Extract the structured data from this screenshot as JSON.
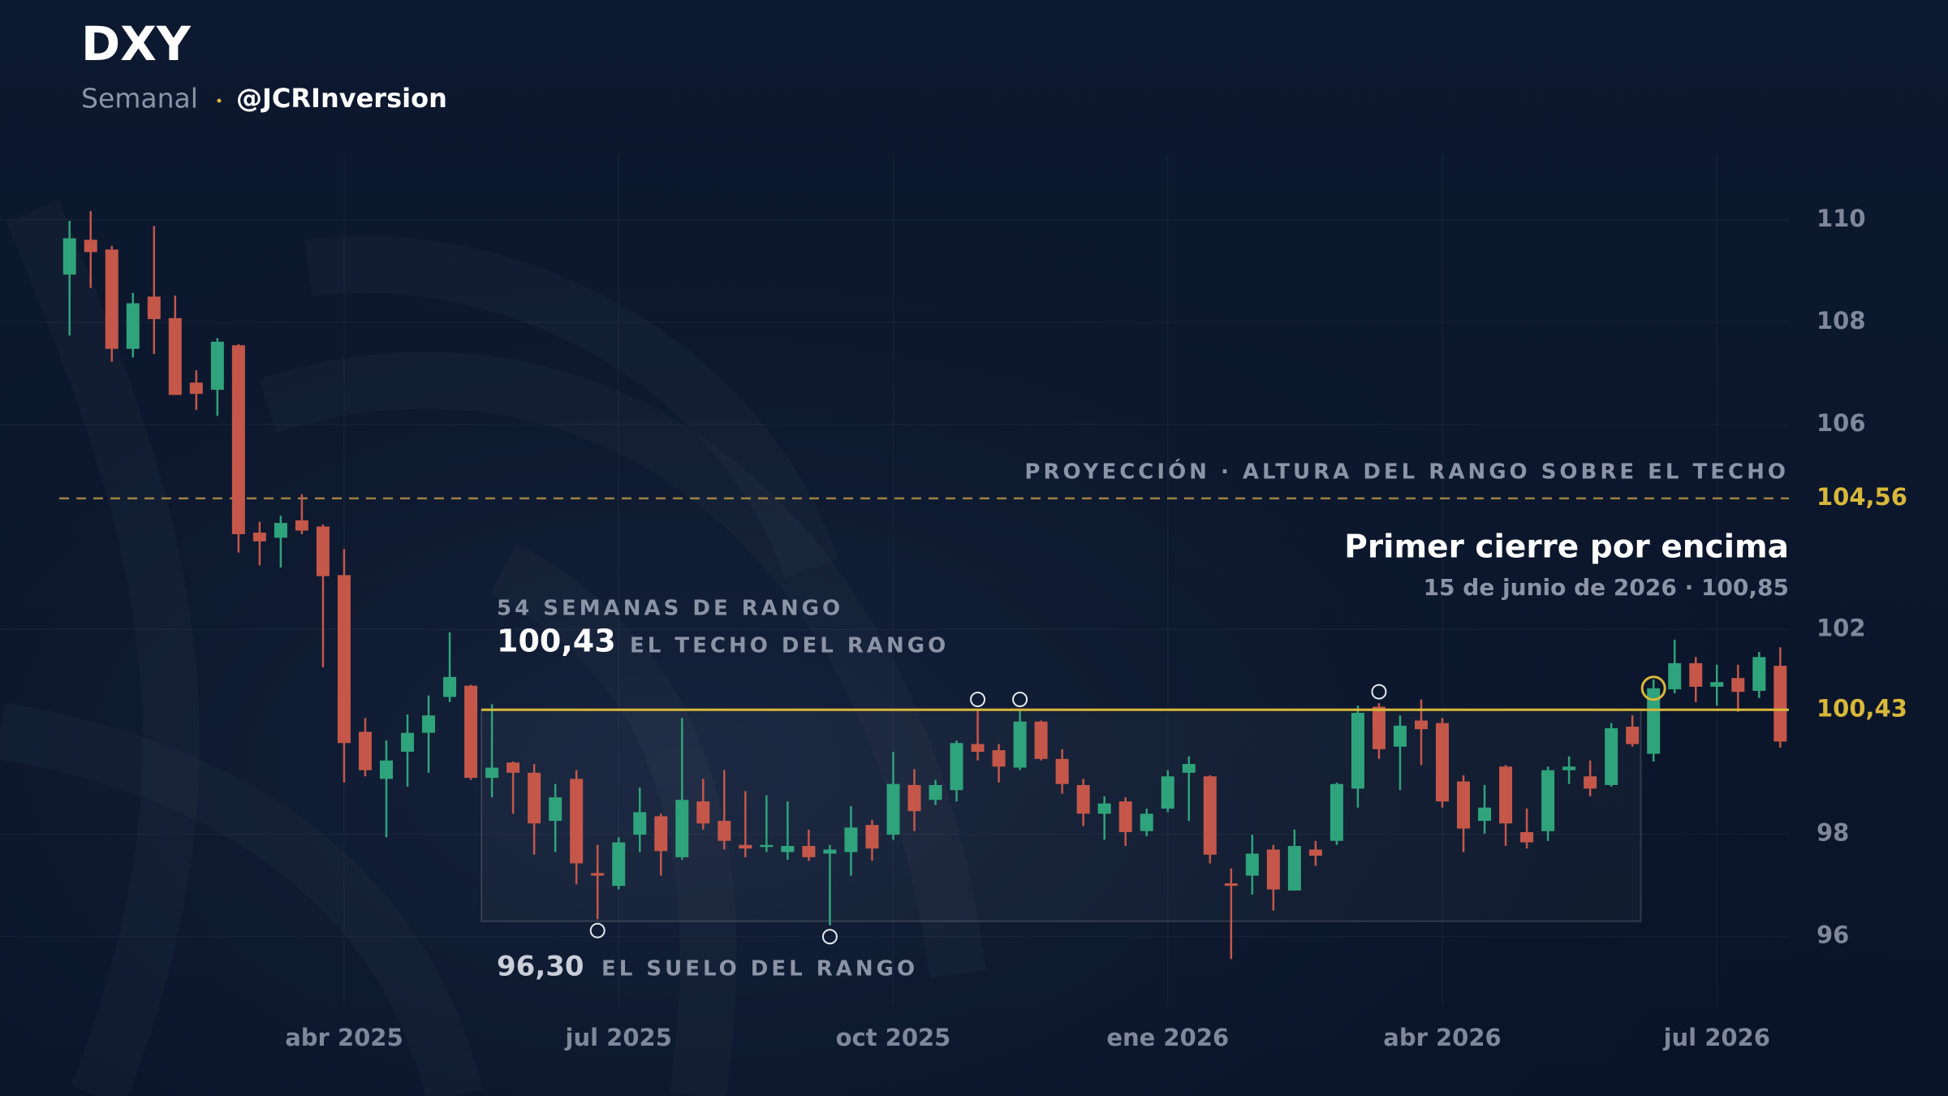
{
  "chart_data": {
    "type": "candlestick",
    "title": "DXY",
    "subtitle": "Semanal",
    "handle": "@JCRInversion",
    "categories": [
      null,
      null,
      null,
      null,
      null,
      null,
      null,
      null,
      null,
      null,
      null,
      null,
      null,
      "abr 2025",
      null,
      null,
      null,
      null,
      null,
      null,
      null,
      null,
      null,
      null,
      null,
      null,
      "jul 2025",
      null,
      null,
      null,
      null,
      null,
      null,
      null,
      null,
      null,
      null,
      null,
      null,
      "oct 2025",
      null,
      null,
      null,
      null,
      null,
      null,
      null,
      null,
      null,
      null,
      null,
      null,
      "ene 2026",
      null,
      null,
      null,
      null,
      null,
      null,
      null,
      null,
      null,
      null,
      null,
      null,
      "abr 2026",
      null,
      null,
      null,
      null,
      null,
      null,
      null,
      null,
      null,
      null,
      null,
      null,
      "jul 2026",
      null,
      null,
      null
    ],
    "open": [
      108.93,
      109.61,
      109.42,
      107.48,
      108.5,
      108.08,
      106.82,
      106.68,
      107.55,
      103.89,
      103.79,
      104.13,
      104.01,
      103.06,
      100.0,
      99.08,
      99.61,
      99.98,
      100.68,
      100.9,
      99.1,
      99.4,
      99.2,
      98.26,
      99.08,
      97.24,
      96.99,
      97.99,
      98.35,
      97.55,
      98.64,
      98.26,
      97.79,
      97.75,
      97.65,
      97.77,
      97.62,
      97.65,
      98.18,
      97.99,
      98.96,
      98.67,
      98.86,
      99.76,
      99.64,
      99.3,
      100.2,
      99.47,
      98.96,
      98.4,
      98.64,
      98.06,
      98.5,
      99.2,
      99.13,
      97.04,
      97.19,
      97.7,
      96.9,
      97.7,
      97.87,
      98.89,
      100.49,
      99.71,
      100.22,
      100.17,
      99.03,
      98.26,
      99.32,
      98.04,
      98.06,
      99.25,
      99.13,
      98.96,
      100.1,
      99.57,
      100.83,
      101.34,
      100.88,
      101.05,
      100.8,
      101.29
    ],
    "high": [
      109.98,
      110.17,
      109.49,
      108.57,
      109.88,
      108.52,
      107.06,
      107.69,
      107.57,
      104.1,
      104.22,
      104.64,
      104.05,
      103.57,
      100.27,
      99.83,
      100.34,
      100.71,
      101.94,
      100.92,
      100.54,
      99.42,
      99.37,
      98.98,
      99.25,
      97.79,
      97.94,
      98.91,
      98.4,
      100.27,
      99.08,
      99.25,
      98.84,
      98.76,
      98.64,
      98.09,
      97.79,
      98.55,
      98.28,
      99.61,
      99.27,
      99.06,
      99.83,
      100.41,
      99.76,
      100.41,
      100.22,
      99.66,
      99.08,
      98.74,
      98.72,
      98.5,
      99.25,
      99.52,
      99.15,
      97.33,
      97.99,
      97.79,
      98.09,
      97.87,
      99.01,
      100.51,
      100.56,
      100.32,
      100.63,
      100.27,
      99.15,
      98.96,
      99.35,
      98.5,
      99.32,
      99.52,
      99.44,
      100.17,
      100.32,
      101.02,
      101.8,
      101.46,
      101.31,
      101.31,
      101.56,
      101.65
    ],
    "low": [
      107.74,
      108.67,
      107.23,
      107.31,
      107.38,
      106.58,
      106.29,
      106.17,
      103.5,
      103.25,
      103.21,
      103.86,
      101.26,
      99.01,
      99.13,
      97.94,
      98.93,
      99.2,
      100.58,
      99.06,
      98.72,
      98.4,
      97.6,
      97.65,
      97.02,
      96.34,
      96.92,
      97.65,
      97.19,
      97.5,
      98.09,
      97.7,
      97.55,
      97.65,
      97.5,
      97.48,
      96.22,
      97.19,
      97.48,
      97.89,
      98.06,
      98.57,
      98.64,
      99.44,
      99.01,
      99.25,
      99.44,
      98.79,
      98.16,
      97.89,
      97.77,
      97.96,
      98.43,
      98.26,
      97.43,
      95.56,
      96.82,
      96.51,
      96.9,
      97.38,
      97.79,
      98.52,
      99.47,
      98.86,
      99.35,
      98.52,
      97.65,
      98.01,
      97.77,
      97.72,
      97.87,
      98.98,
      98.74,
      98.93,
      99.71,
      99.42,
      100.75,
      100.58,
      100.51,
      100.39,
      100.66,
      99.69
    ],
    "close": [
      109.64,
      109.37,
      107.48,
      108.37,
      108.06,
      106.58,
      106.6,
      107.62,
      103.86,
      103.72,
      104.08,
      103.93,
      103.04,
      99.78,
      99.25,
      99.44,
      99.98,
      100.32,
      101.07,
      99.1,
      99.3,
      99.2,
      98.21,
      98.72,
      97.43,
      97.19,
      97.84,
      98.43,
      97.67,
      98.67,
      98.21,
      97.87,
      97.72,
      97.79,
      97.77,
      97.55,
      97.7,
      98.13,
      97.72,
      98.98,
      98.45,
      98.96,
      99.78,
      99.61,
      99.32,
      100.2,
      99.47,
      98.98,
      98.4,
      98.6,
      98.04,
      98.4,
      99.13,
      99.37,
      97.6,
      96.99,
      97.62,
      96.92,
      97.77,
      97.58,
      98.98,
      100.37,
      99.66,
      100.12,
      100.05,
      98.64,
      98.11,
      98.52,
      98.21,
      97.84,
      99.25,
      99.32,
      98.89,
      100.07,
      99.76,
      100.85,
      101.34,
      100.88,
      100.97,
      100.78,
      101.46,
      99.81
    ],
    "up_color": "#2fa37b",
    "down_color": "#c4574a",
    "ylim": [
      94.9,
      110.9
    ],
    "yticks": [
      96,
      98,
      102,
      106,
      108,
      110
    ],
    "grid": true,
    "range": {
      "top": {
        "value": 100.43,
        "label": "100,43"
      },
      "bottom": {
        "value": 96.3,
        "label": "96,30"
      },
      "weeks_label": "54 SEMANAS DE RANGO",
      "top_label": "EL TECHO DEL RANGO",
      "bottom_label": "EL SUELO DEL RANGO",
      "color": "#d8b83a"
    },
    "projection": {
      "value": 104.56,
      "label": "104,56",
      "text": "PROYECCIÓN · ALTURA DEL RANGO SOBRE EL TECHO",
      "color": "#b89545"
    },
    "breakout": {
      "title": "Primer cierre por encima",
      "detail": "15 de junio de 2026 · 100,85"
    }
  }
}
